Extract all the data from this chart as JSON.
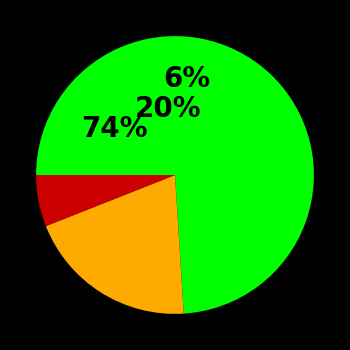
{
  "slices": [
    74,
    20,
    6
  ],
  "colors": [
    "#00ff00",
    "#ffaa00",
    "#cc0000"
  ],
  "labels": [
    "74%",
    "20%",
    "6%"
  ],
  "background_color": "#000000",
  "startangle": 180,
  "label_fontsize": 20,
  "label_fontweight": "bold",
  "label_radii": [
    0.55,
    0.48,
    0.7
  ]
}
